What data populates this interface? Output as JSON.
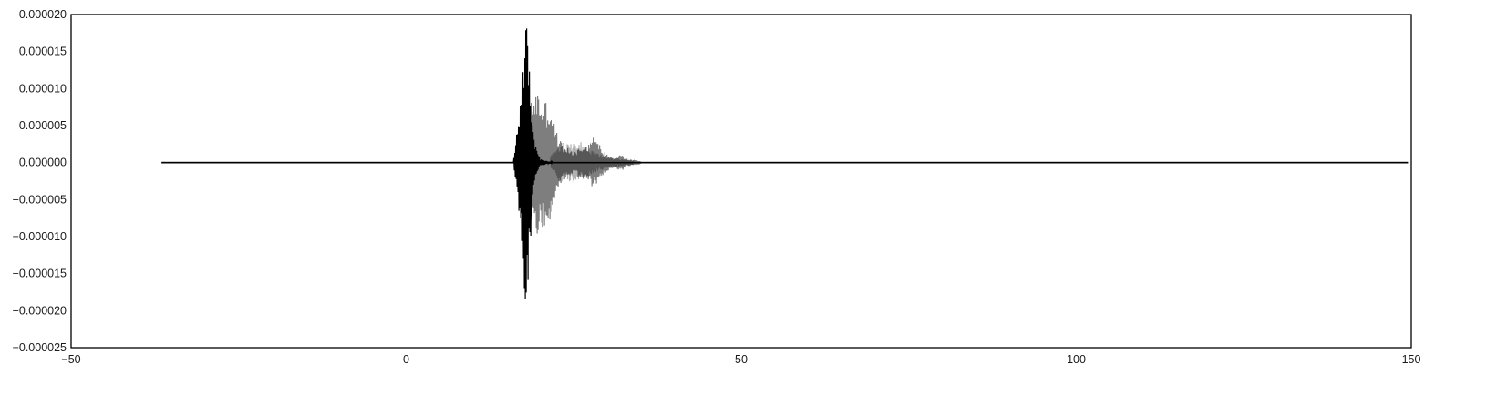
{
  "chart_data": {
    "type": "line",
    "title": "",
    "xlabel": "",
    "ylabel": "",
    "xlim": [
      -50,
      150
    ],
    "ylim": [
      -2.5e-05,
      2e-05
    ],
    "xticks": [
      -50,
      0,
      50,
      100,
      150
    ],
    "xtick_labels": [
      "−50",
      "0",
      "50",
      "100",
      "150"
    ],
    "yticks": [
      2e-05,
      1.5e-05,
      1e-05,
      5e-06,
      0,
      -5e-06,
      -1e-05,
      -1.5e-05,
      -2e-05,
      -2.5e-05
    ],
    "ytick_labels": [
      "0.000020",
      "0.000015",
      "0.000010",
      "0.000005",
      "0.000000",
      "−0.000005",
      "−0.000010",
      "−0.000015",
      "−0.000020",
      "−0.000025"
    ],
    "grid": false,
    "legend": "none",
    "series": [
      {
        "color": "#000000",
        "opacity": 1.0,
        "x_start": -36.5,
        "x_end": 149.5,
        "envelope": [
          [
            16.0,
            3e-07
          ],
          [
            16.5,
            4e-06
          ],
          [
            17.0,
            9e-06
          ],
          [
            17.5,
            1.55e-05
          ],
          [
            17.8,
            1.95e-05
          ],
          [
            18.2,
            1.7e-05
          ],
          [
            18.6,
            1e-05
          ],
          [
            19.0,
            4e-06
          ],
          [
            19.5,
            1.5e-06
          ],
          [
            20.0,
            5e-07
          ],
          [
            21.0,
            2e-07
          ],
          [
            22.0,
            1e-07
          ]
        ]
      },
      {
        "color": "#000000",
        "opacity": 0.5,
        "x_start": -36.5,
        "x_end": 149.5,
        "envelope": [
          [
            17.5,
            2e-06
          ],
          [
            18.5,
            8e-06
          ],
          [
            19.3,
            1.05e-05
          ],
          [
            20.0,
            9e-06
          ],
          [
            20.7,
            8.5e-06
          ],
          [
            21.5,
            8e-06
          ],
          [
            22.3,
            4.5e-06
          ],
          [
            23.0,
            3e-06
          ],
          [
            24.0,
            2e-06
          ],
          [
            25.0,
            1.5e-06
          ],
          [
            26.0,
            2.2e-06
          ],
          [
            27.0,
            2.5e-06
          ],
          [
            27.8,
            3.5e-06
          ],
          [
            28.5,
            3e-06
          ],
          [
            29.5,
            1.5e-06
          ],
          [
            31.0,
            6e-07
          ],
          [
            32.0,
            1.2e-06
          ],
          [
            33.0,
            5e-07
          ],
          [
            34.0,
            4e-07
          ],
          [
            35.0,
            2e-07
          ]
        ]
      },
      {
        "color": "#000000",
        "opacity": 0.3,
        "x_start": -36.5,
        "x_end": 149.5,
        "envelope": [
          [
            21.5,
            1e-06
          ],
          [
            23.0,
            2.8e-06
          ],
          [
            24.5,
            2.5e-06
          ],
          [
            25.5,
            3.2e-06
          ],
          [
            26.5,
            2.5e-06
          ],
          [
            28.0,
            1.5e-06
          ],
          [
            30.0,
            8e-07
          ],
          [
            32.0,
            5e-07
          ],
          [
            34.0,
            3e-07
          ]
        ]
      }
    ]
  }
}
